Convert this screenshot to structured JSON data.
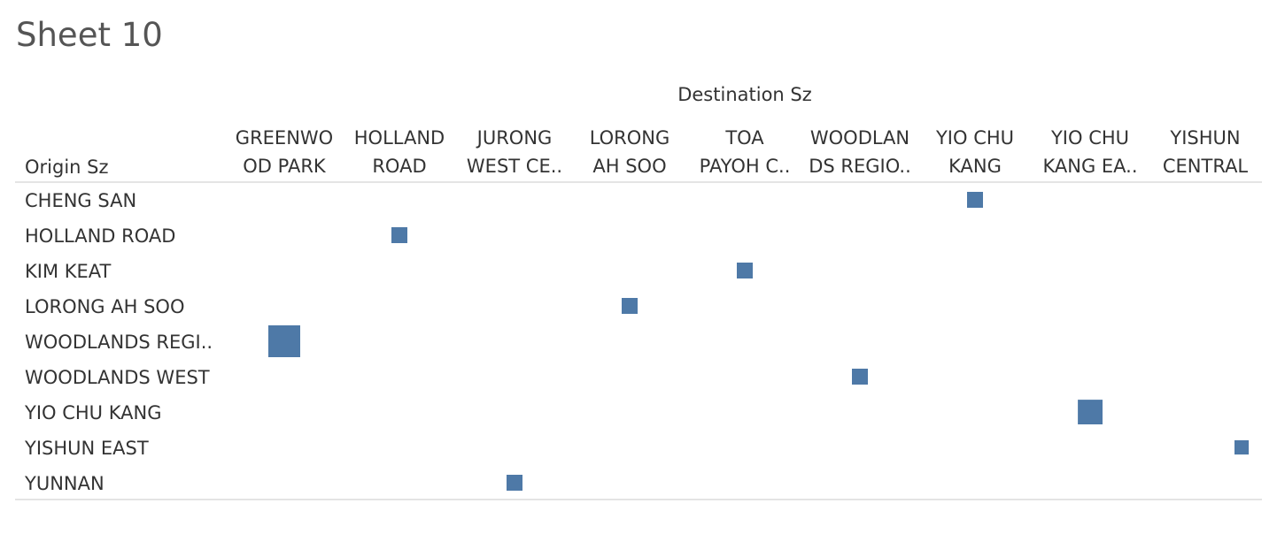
{
  "title": "Sheet 10",
  "chart_data": {
    "type": "heatmap",
    "column_axis_title": "Destination Sz",
    "row_axis_title": "Origin Sz",
    "columns": [
      [
        "GREENWO",
        "OD PARK"
      ],
      [
        "HOLLAND",
        "ROAD"
      ],
      [
        "JURONG",
        "WEST CE.."
      ],
      [
        "LORONG",
        "AH SOO"
      ],
      [
        "TOA",
        "PAYOH C.."
      ],
      [
        "WOODLAN",
        "DS REGIO.."
      ],
      [
        "YIO CHU",
        "KANG"
      ],
      [
        "YIO CHU",
        "KANG EA.."
      ],
      [
        "YISHUN",
        "CENTRAL"
      ]
    ],
    "rows": [
      "CHENG SAN",
      "HOLLAND ROAD",
      "KIM KEAT",
      "LORONG AH SOO",
      "WOODLANDS REGI..",
      "WOODLANDS WEST",
      "YIO CHU KANG",
      "YISHUN EAST",
      "YUNNAN"
    ],
    "cells": [
      {
        "row": 0,
        "col": 6,
        "value": 1
      },
      {
        "row": 1,
        "col": 1,
        "value": 1
      },
      {
        "row": 2,
        "col": 4,
        "value": 1
      },
      {
        "row": 3,
        "col": 3,
        "value": 1
      },
      {
        "row": 4,
        "col": 0,
        "value": 4
      },
      {
        "row": 5,
        "col": 5,
        "value": 1
      },
      {
        "row": 6,
        "col": 7,
        "value": 2.4
      },
      {
        "row": 7,
        "col": 8,
        "value": 0.8
      },
      {
        "row": 8,
        "col": 2,
        "value": 1
      }
    ],
    "mark_color": "#4e79a7",
    "rule_color": "#c8c8c8",
    "grid": false
  }
}
